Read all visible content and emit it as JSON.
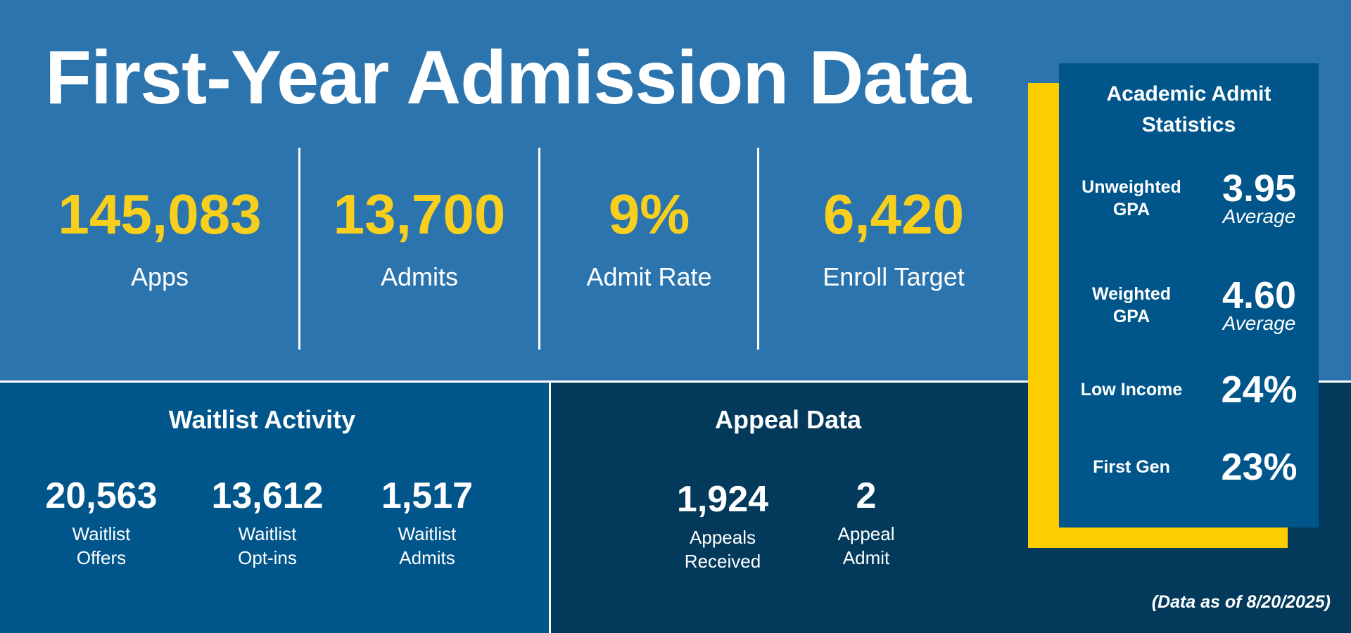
{
  "header": {
    "title": "First-Year Admission Data"
  },
  "stats": [
    {
      "value": "145,083",
      "label": "Apps"
    },
    {
      "value": "13,700",
      "label": "Admits"
    },
    {
      "value": "9%",
      "label": "Admit Rate"
    },
    {
      "value": "6,420",
      "label": "Enroll Target"
    }
  ],
  "waitlist": {
    "title": "Waitlist Activity",
    "items": [
      {
        "value": "20,563",
        "label_1": "Waitlist",
        "label_2": "Offers"
      },
      {
        "value": "13,612",
        "label_1": "Waitlist",
        "label_2": "Opt-ins"
      },
      {
        "value": "1,517",
        "label_1": "Waitlist",
        "label_2": "Admits"
      }
    ]
  },
  "appeal": {
    "title": "Appeal Data",
    "items": [
      {
        "value": "1,924",
        "label_1": "Appeals",
        "label_2": "Received"
      },
      {
        "value": "2",
        "label_1": "Appeal",
        "label_2": "Admit"
      }
    ]
  },
  "academic": {
    "title_1": "Academic Admit",
    "title_2": "Statistics",
    "rows": [
      {
        "label_1": "Unweighted",
        "label_2": "GPA",
        "value": "3.95",
        "sub": "Average"
      },
      {
        "label_1": "Weighted",
        "label_2": "GPA",
        "value": "4.60",
        "sub": "Average"
      },
      {
        "label_1": "Low Income",
        "value": "24%"
      },
      {
        "label_1": "First Gen",
        "value": "23%"
      }
    ]
  },
  "footnote": "(Data as of 8/20/2025)",
  "colors": {
    "accent_yellow": "#f8cf1c",
    "top_blue": "#2b74ae",
    "mid_blue": "#00558a",
    "dark_navy": "#033a5c"
  }
}
